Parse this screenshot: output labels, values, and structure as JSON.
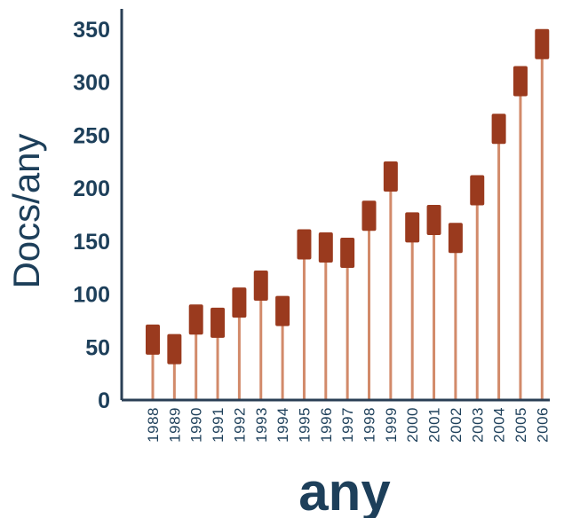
{
  "chart_data": {
    "type": "bar",
    "title": "",
    "xlabel": "any",
    "ylabel": "Docs/any",
    "ylim": [
      0,
      350
    ],
    "yticks": [
      "0",
      "50",
      "100",
      "150",
      "200",
      "250",
      "300",
      "350"
    ],
    "grid": false,
    "categories": [
      "1988",
      "1989",
      "1990",
      "1991",
      "1992",
      "1993",
      "1994",
      "1995",
      "1996",
      "1997",
      "1998",
      "1999",
      "2000",
      "2001",
      "2002",
      "2003",
      "2004",
      "2005",
      "2006"
    ],
    "values": [
      57,
      48,
      76,
      73,
      92,
      108,
      84,
      147,
      144,
      139,
      174,
      211,
      163,
      170,
      153,
      198,
      256,
      301,
      336
    ],
    "colors": {
      "stem": "#d28a6a",
      "marker": "#9a3a1e",
      "axis": "#2a3f55",
      "text": "#1d3f5a"
    }
  }
}
